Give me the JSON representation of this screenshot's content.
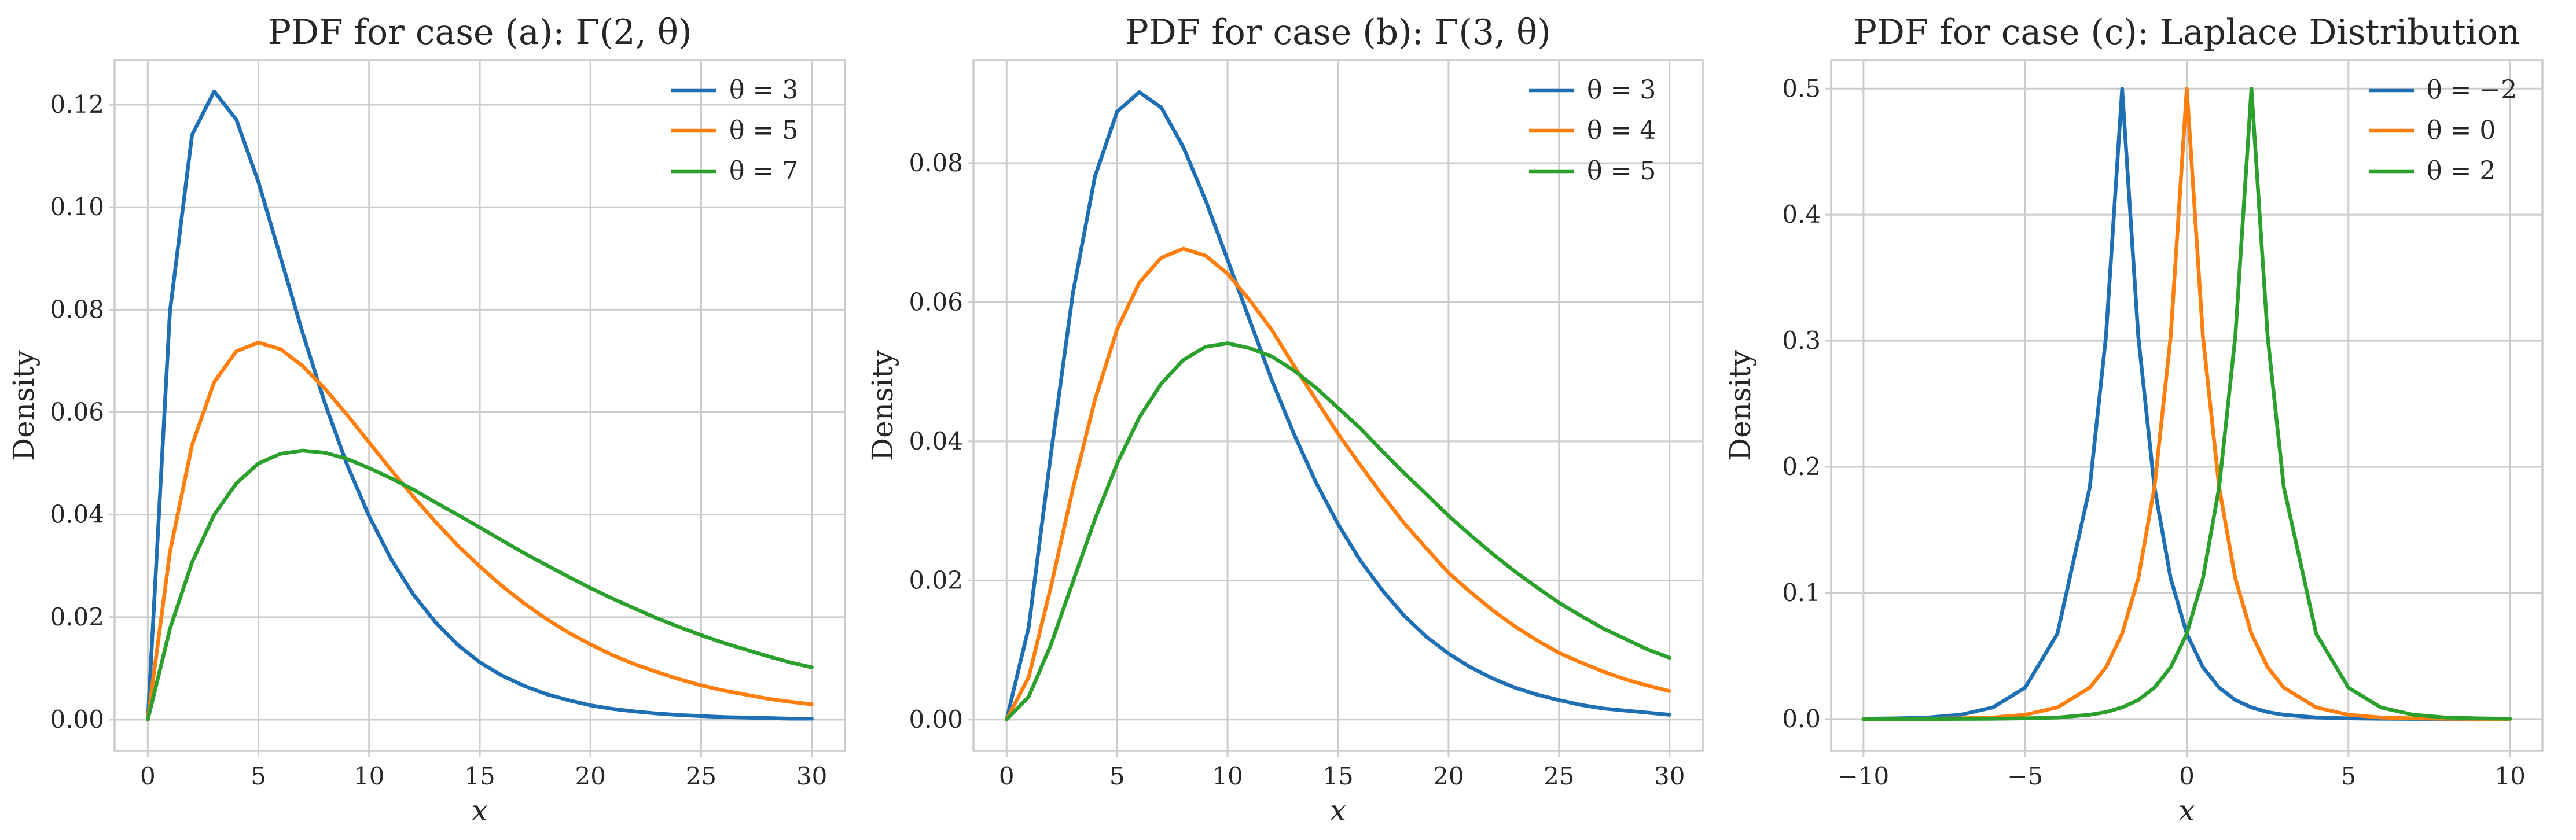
{
  "colors": {
    "blue": "#1f6fb4",
    "orange": "#ff7f0e",
    "green": "#2ca02c",
    "grid": "#cccccc",
    "text": "#262626"
  },
  "chart_data": [
    {
      "type": "line",
      "title": "PDF for case (a): Γ(2, θ)",
      "xlabel": "x",
      "ylabel": "Density",
      "xlim": [
        -1.5,
        31.5
      ],
      "ylim": [
        -0.0061,
        0.1287
      ],
      "xticks": [
        0,
        5,
        10,
        15,
        20,
        25,
        30
      ],
      "xtick_labels": [
        "0",
        "5",
        "10",
        "15",
        "20",
        "25",
        "30"
      ],
      "yticks": [
        0.0,
        0.02,
        0.04,
        0.06,
        0.08,
        0.1,
        0.12
      ],
      "ytick_labels": [
        "0.00",
        "0.02",
        "0.04",
        "0.06",
        "0.08",
        "0.10",
        "0.12"
      ],
      "grid": true,
      "legend": "top-right",
      "x": [
        0,
        1,
        2,
        3,
        4,
        5,
        6,
        7,
        8,
        9,
        10,
        11,
        12,
        13,
        14,
        15,
        16,
        17,
        18,
        19,
        20,
        21,
        22,
        23,
        24,
        25,
        26,
        27,
        28,
        29,
        30
      ],
      "series": [
        {
          "name": "θ = 3",
          "color": "blue",
          "values": [
            0.0,
            0.0796,
            0.1141,
            0.1226,
            0.1171,
            0.1049,
            0.0902,
            0.0754,
            0.0618,
            0.0498,
            0.0397,
            0.0313,
            0.0244,
            0.019,
            0.0146,
            0.0112,
            0.0086,
            0.0066,
            0.005,
            0.0038,
            0.0028,
            0.0021,
            0.0016,
            0.0012,
            0.0009,
            0.0007,
            0.0005,
            0.0004,
            0.0003,
            0.0002,
            0.0002
          ]
        },
        {
          "name": "θ = 5",
          "color": "orange",
          "values": [
            0.0,
            0.0327,
            0.0536,
            0.0659,
            0.0719,
            0.0736,
            0.0723,
            0.069,
            0.0646,
            0.0595,
            0.0541,
            0.0487,
            0.0435,
            0.0386,
            0.034,
            0.0299,
            0.0261,
            0.0227,
            0.0197,
            0.017,
            0.0147,
            0.0126,
            0.0108,
            0.0093,
            0.0079,
            0.0067,
            0.0057,
            0.0049,
            0.0041,
            0.0035,
            0.003
          ]
        },
        {
          "name": "θ = 7",
          "color": "green",
          "values": [
            0.0,
            0.0177,
            0.0307,
            0.04,
            0.0461,
            0.05,
            0.0519,
            0.0525,
            0.0521,
            0.0509,
            0.0491,
            0.0471,
            0.0449,
            0.0424,
            0.04,
            0.0375,
            0.035,
            0.0325,
            0.0302,
            0.0279,
            0.0257,
            0.0236,
            0.0217,
            0.0198,
            0.0181,
            0.0165,
            0.015,
            0.0137,
            0.0124,
            0.0112,
            0.0102
          ]
        }
      ]
    },
    {
      "type": "line",
      "title": "PDF for case (b): Γ(3, θ)",
      "xlabel": "x",
      "ylabel": "Density",
      "xlim": [
        -1.5,
        31.5
      ],
      "ylim": [
        -0.0045,
        0.0948
      ],
      "xticks": [
        0,
        5,
        10,
        15,
        20,
        25,
        30
      ],
      "xtick_labels": [
        "0",
        "5",
        "10",
        "15",
        "20",
        "25",
        "30"
      ],
      "yticks": [
        0.0,
        0.02,
        0.04,
        0.06,
        0.08
      ],
      "ytick_labels": [
        "0.00",
        "0.02",
        "0.04",
        "0.06",
        "0.08"
      ],
      "grid": true,
      "legend": "top-right",
      "x": [
        0,
        1,
        2,
        3,
        4,
        5,
        6,
        7,
        8,
        9,
        10,
        11,
        12,
        13,
        14,
        15,
        16,
        17,
        18,
        19,
        20,
        21,
        22,
        23,
        24,
        25,
        26,
        27,
        28,
        29,
        30
      ],
      "series": [
        {
          "name": "θ = 3",
          "color": "blue",
          "values": [
            0.0,
            0.0133,
            0.038,
            0.0613,
            0.0781,
            0.0874,
            0.0902,
            0.088,
            0.0823,
            0.0747,
            0.0661,
            0.0574,
            0.0488,
            0.0411,
            0.0341,
            0.0281,
            0.0229,
            0.0186,
            0.0149,
            0.0119,
            0.0095,
            0.0075,
            0.0059,
            0.0046,
            0.0036,
            0.0028,
            0.0021,
            0.0016,
            0.0013,
            0.001,
            0.0007
          ]
        },
        {
          "name": "θ = 4",
          "color": "orange",
          "values": [
            0.0,
            0.0061,
            0.019,
            0.0332,
            0.046,
            0.0561,
            0.0628,
            0.0664,
            0.0677,
            0.0667,
            0.0641,
            0.0603,
            0.056,
            0.0509,
            0.046,
            0.0411,
            0.0366,
            0.0323,
            0.0282,
            0.0246,
            0.0211,
            0.0183,
            0.0157,
            0.0134,
            0.0114,
            0.0096,
            0.0082,
            0.0069,
            0.0058,
            0.0049,
            0.0041
          ]
        },
        {
          "name": "θ = 5",
          "color": "green",
          "values": [
            0.0,
            0.0033,
            0.0107,
            0.0198,
            0.0288,
            0.0368,
            0.0434,
            0.0483,
            0.0517,
            0.0536,
            0.0541,
            0.0534,
            0.0522,
            0.0502,
            0.0477,
            0.0448,
            0.0419,
            0.0386,
            0.0354,
            0.0324,
            0.0293,
            0.0265,
            0.0238,
            0.0213,
            0.019,
            0.0168,
            0.0149,
            0.0131,
            0.0116,
            0.0101,
            0.0089
          ]
        }
      ]
    },
    {
      "type": "line",
      "title": "PDF for case (c): Laplace Distribution",
      "xlabel": "x",
      "ylabel": "Density",
      "xlim": [
        -11.0,
        11.0
      ],
      "ylim": [
        -0.0253,
        0.5226
      ],
      "xticks": [
        -10,
        -5,
        0,
        5,
        10
      ],
      "xtick_labels": [
        "−10",
        "−5",
        "0",
        "5",
        "10"
      ],
      "yticks": [
        0.0,
        0.1,
        0.2,
        0.3,
        0.4,
        0.5
      ],
      "ytick_labels": [
        "0.0",
        "0.1",
        "0.2",
        "0.3",
        "0.4",
        "0.5"
      ],
      "grid": true,
      "legend": "top-right",
      "x": [
        -10,
        -9,
        -8,
        -7,
        -6,
        -5,
        -4,
        -3,
        -2.5,
        -2,
        -1.5,
        -1,
        -0.5,
        0,
        0.5,
        1,
        1.5,
        2,
        2.5,
        3,
        4,
        5,
        6,
        7,
        8,
        9,
        10
      ],
      "series": [
        {
          "name": "θ = −2",
          "color": "blue",
          "values": [
            0.0002,
            0.0005,
            0.0012,
            0.0034,
            0.0092,
            0.0249,
            0.0677,
            0.1839,
            0.3033,
            0.5,
            0.3033,
            0.1839,
            0.1116,
            0.0677,
            0.041,
            0.0249,
            0.0151,
            0.0092,
            0.0055,
            0.0034,
            0.0012,
            0.0005,
            0.0002,
            0.0001,
            0.0,
            0.0,
            0.0
          ]
        },
        {
          "name": "θ = 0",
          "color": "orange",
          "values": [
            0.0,
            0.0001,
            0.0002,
            0.0005,
            0.0012,
            0.0034,
            0.0092,
            0.0249,
            0.041,
            0.0677,
            0.1116,
            0.1839,
            0.3033,
            0.5,
            0.3033,
            0.1839,
            0.1116,
            0.0677,
            0.041,
            0.0249,
            0.0092,
            0.0034,
            0.0012,
            0.0005,
            0.0002,
            0.0001,
            0.0
          ]
        },
        {
          "name": "θ = 2",
          "color": "green",
          "values": [
            0.0,
            0.0,
            0.0,
            0.0001,
            0.0002,
            0.0005,
            0.0012,
            0.0034,
            0.0055,
            0.0092,
            0.0151,
            0.0249,
            0.041,
            0.0677,
            0.1116,
            0.1839,
            0.3033,
            0.5,
            0.3033,
            0.1839,
            0.0677,
            0.0249,
            0.0092,
            0.0034,
            0.0012,
            0.0005,
            0.0002
          ]
        }
      ]
    }
  ]
}
